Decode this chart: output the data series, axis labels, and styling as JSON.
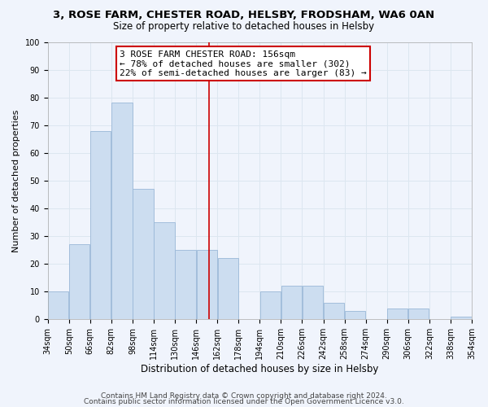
{
  "title1": "3, ROSE FARM, CHESTER ROAD, HELSBY, FRODSHAM, WA6 0AN",
  "title2": "Size of property relative to detached houses in Helsby",
  "xlabel": "Distribution of detached houses by size in Helsby",
  "ylabel": "Number of detached properties",
  "bar_edges": [
    34,
    50,
    66,
    82,
    98,
    114,
    130,
    146,
    162,
    178,
    194,
    210,
    226,
    242,
    258,
    274,
    290,
    306,
    322,
    338,
    354
  ],
  "bar_heights": [
    10,
    27,
    68,
    78,
    47,
    35,
    25,
    25,
    22,
    0,
    10,
    12,
    12,
    6,
    3,
    0,
    4,
    4,
    0,
    1
  ],
  "bar_color": "#ccddf0",
  "bar_edgecolor": "#9ab8d8",
  "vline_x": 156,
  "vline_color": "#cc0000",
  "annotation_line1": "3 ROSE FARM CHESTER ROAD: 156sqm",
  "annotation_line2": "← 78% of detached houses are smaller (302)",
  "annotation_line3": "22% of semi-detached houses are larger (83) →",
  "ylim": [
    0,
    100
  ],
  "yticks": [
    0,
    10,
    20,
    30,
    40,
    50,
    60,
    70,
    80,
    90,
    100
  ],
  "grid_color": "#dce6f0",
  "footer1": "Contains HM Land Registry data © Crown copyright and database right 2024.",
  "footer2": "Contains public sector information licensed under the Open Government Licence v3.0.",
  "title1_fontsize": 9.5,
  "title2_fontsize": 8.5,
  "xlabel_fontsize": 8.5,
  "ylabel_fontsize": 8,
  "tick_fontsize": 7,
  "annotation_fontsize": 8,
  "footer_fontsize": 6.5,
  "bg_color": "#f0f4fc"
}
